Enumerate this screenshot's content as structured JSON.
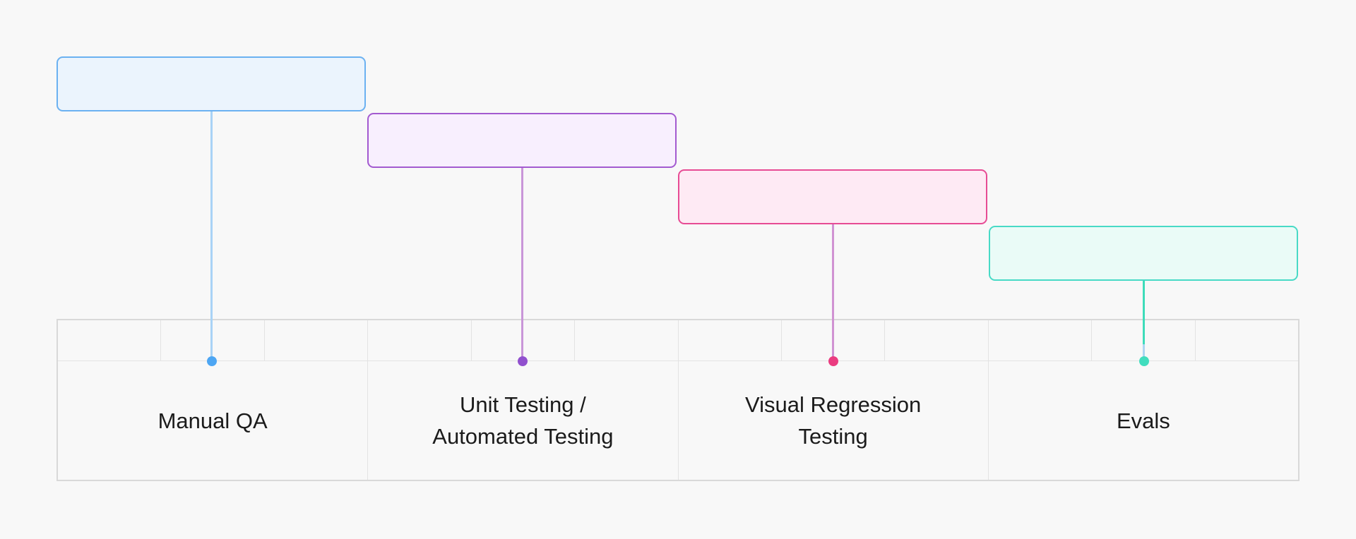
{
  "page": {
    "background": "#f8f8f8",
    "text_color": "#1b1b1b"
  },
  "table": {
    "border_outer": "#d9d9d9",
    "border_inner": "#e3e3e3",
    "sections": 4,
    "ticks_per_section": 3
  },
  "steps": [
    {
      "id": "manual-qa",
      "label": "Manual QA",
      "colors": {
        "fill": "#ebf4fd",
        "border": "#6bb1f1",
        "line": "#a9d3f6",
        "dot": "#4da6f3"
      }
    },
    {
      "id": "unit-automated-testing",
      "label": "Unit Testing /\nAutomated Testing",
      "colors": {
        "fill": "#f8effe",
        "border": "#a35ad0",
        "line": "#c996d8",
        "dot": "#9150ce"
      }
    },
    {
      "id": "visual-regression-testing",
      "label": "Visual Regression\nTesting",
      "colors": {
        "fill": "#feeaf4",
        "border": "#e74b94",
        "line": "#d092d2",
        "dot": "#ea3c80"
      }
    },
    {
      "id": "evals",
      "label": "Evals",
      "colors": {
        "fill": "#eafbf7",
        "border": "#48dac6",
        "line": "#3edcba",
        "line_tail": "#abd5f2",
        "dot": "#41ddbe"
      }
    }
  ]
}
